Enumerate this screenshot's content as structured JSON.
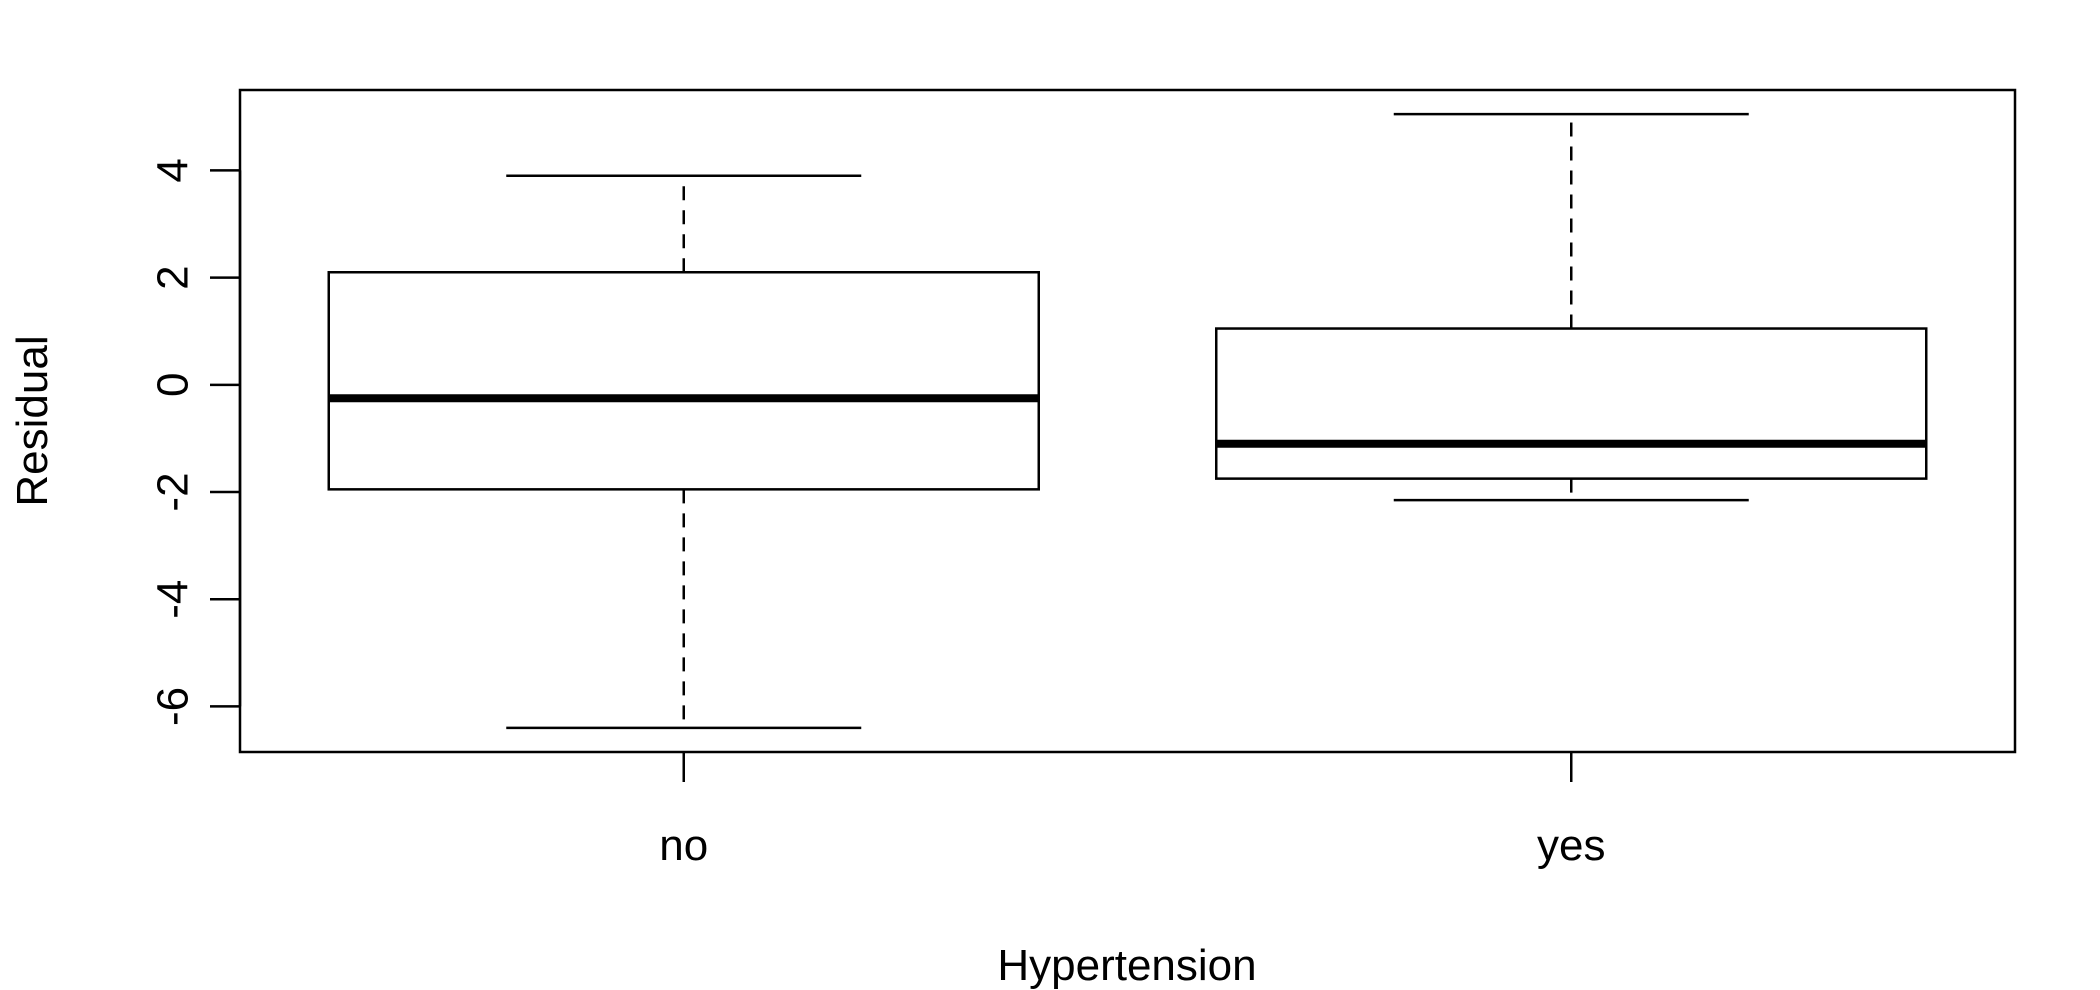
{
  "chart_data": {
    "type": "boxplot",
    "title": "",
    "xlabel": "Hypertension",
    "ylabel": "Residual",
    "categories": [
      "no",
      "yes"
    ],
    "ylim": [
      -6.85,
      5.5
    ],
    "yticks": [
      -6,
      -4,
      -2,
      0,
      2,
      4
    ],
    "ytick_labels": [
      "-6",
      "-4",
      "-2",
      "0",
      "2",
      "4"
    ],
    "grid": false,
    "legend": "none",
    "boxes": [
      {
        "category": "no",
        "whisker_low": -6.4,
        "q1": -1.95,
        "median": -0.25,
        "q3": 2.1,
        "whisker_high": 3.9
      },
      {
        "category": "yes",
        "whisker_low": -2.15,
        "q1": -1.75,
        "median": -1.1,
        "q3": 1.05,
        "whisker_high": 5.05
      }
    ],
    "colors": {
      "box_fill": "#ffffff",
      "stroke": "#000000"
    }
  }
}
